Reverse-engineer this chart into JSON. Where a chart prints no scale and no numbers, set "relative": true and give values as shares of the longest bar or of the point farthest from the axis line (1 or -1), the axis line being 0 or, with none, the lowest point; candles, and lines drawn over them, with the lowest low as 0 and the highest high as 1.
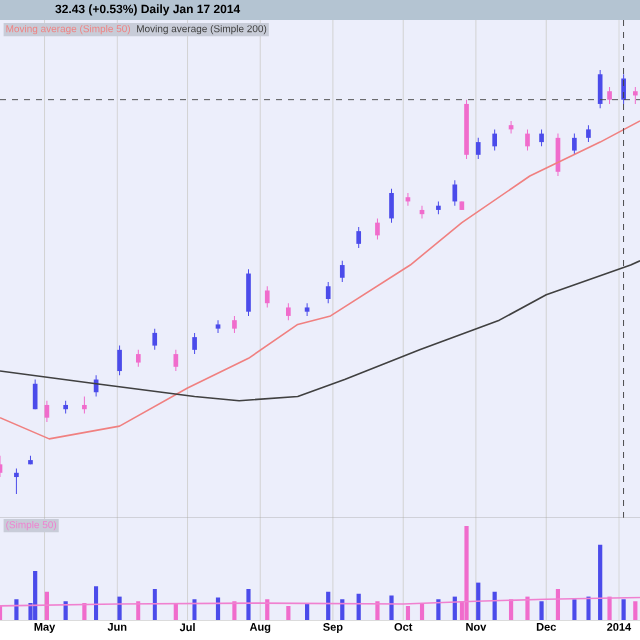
{
  "chart_data": [
    {
      "type": "candlestick",
      "relative": true,
      "title": "32.43 (+0.53%)   Daily   Jan 17 2014",
      "x": [
        "2013-04-12",
        "2013-04-19",
        "2013-04-25",
        "2013-04-27",
        "2013-05-02",
        "2013-05-10",
        "2013-05-18",
        "2013-05-23",
        "2013-06-02",
        "2013-06-10",
        "2013-06-17",
        "2013-06-26",
        "2013-07-04",
        "2013-07-14",
        "2013-07-21",
        "2013-07-27",
        "2013-08-04",
        "2013-08-13",
        "2013-08-21",
        "2013-08-30",
        "2013-09-05",
        "2013-09-12",
        "2013-09-20",
        "2013-09-26",
        "2013-10-03",
        "2013-10-09",
        "2013-10-16",
        "2013-10-23",
        "2013-10-26",
        "2013-10-28",
        "2013-11-02",
        "2013-11-09",
        "2013-11-16",
        "2013-11-23",
        "2013-11-29",
        "2013-12-06",
        "2013-12-13",
        "2013-12-19",
        "2013-12-24",
        "2013-12-28",
        "2014-01-03",
        "2014-01-08"
      ],
      "ohlc": [
        [
          0.07,
          0.09,
          0.04,
          0.05
        ],
        [
          0.04,
          0.06,
          0,
          0.05
        ],
        [
          0.07,
          0.09,
          0.07,
          0.08
        ],
        [
          0.2,
          0.27,
          0.2,
          0.26
        ],
        [
          0.21,
          0.22,
          0.17,
          0.18
        ],
        [
          0.2,
          0.22,
          0.19,
          0.21
        ],
        [
          0.21,
          0.23,
          0.19,
          0.2
        ],
        [
          0.24,
          0.28,
          0.23,
          0.27
        ],
        [
          0.29,
          0.35,
          0.28,
          0.34
        ],
        [
          0.33,
          0.34,
          0.3,
          0.31
        ],
        [
          0.35,
          0.39,
          0.34,
          0.38
        ],
        [
          0.33,
          0.34,
          0.29,
          0.3
        ],
        [
          0.34,
          0.38,
          0.33,
          0.37
        ],
        [
          0.39,
          0.41,
          0.38,
          0.4
        ],
        [
          0.41,
          0.42,
          0.38,
          0.39
        ],
        [
          0.43,
          0.53,
          0.42,
          0.52
        ],
        [
          0.48,
          0.49,
          0.44,
          0.45
        ],
        [
          0.44,
          0.45,
          0.41,
          0.42
        ],
        [
          0.43,
          0.45,
          0.42,
          0.44
        ],
        [
          0.46,
          0.5,
          0.45,
          0.49
        ],
        [
          0.51,
          0.55,
          0.5,
          0.54
        ],
        [
          0.59,
          0.63,
          0.58,
          0.62
        ],
        [
          0.64,
          0.65,
          0.6,
          0.61
        ],
        [
          0.65,
          0.72,
          0.64,
          0.71
        ],
        [
          0.7,
          0.71,
          0.68,
          0.69
        ],
        [
          0.67,
          0.68,
          0.65,
          0.66
        ],
        [
          0.67,
          0.69,
          0.66,
          0.68
        ],
        [
          0.69,
          0.74,
          0.68,
          0.73
        ],
        [
          0.69,
          0.69,
          0.67,
          0.67
        ],
        [
          0.92,
          0.93,
          0.79,
          0.8
        ],
        [
          0.8,
          0.84,
          0.79,
          0.83
        ],
        [
          0.82,
          0.86,
          0.81,
          0.85
        ],
        [
          0.87,
          0.88,
          0.85,
          0.86
        ],
        [
          0.85,
          0.86,
          0.81,
          0.82
        ],
        [
          0.83,
          0.86,
          0.82,
          0.85
        ],
        [
          0.84,
          0.85,
          0.75,
          0.76
        ],
        [
          0.81,
          0.85,
          0.8,
          0.84
        ],
        [
          0.84,
          0.87,
          0.83,
          0.86
        ],
        [
          0.92,
          1.0,
          0.91,
          0.99
        ],
        [
          0.95,
          0.96,
          0.92,
          0.93
        ],
        [
          0.93,
          0.99,
          0.92,
          0.98
        ],
        [
          0.95,
          0.96,
          0.92,
          0.94
        ]
      ],
      "colors": [
        "#f06ccc",
        "#4b4bea",
        "#4b4bea",
        "#4b4bea",
        "#f06ccc",
        "#4b4bea",
        "#f06ccc",
        "#4b4bea",
        "#4b4bea",
        "#f06ccc",
        "#4b4bea",
        "#f06ccc",
        "#4b4bea",
        "#4b4bea",
        "#f06ccc",
        "#4b4bea",
        "#f06ccc",
        "#f06ccc",
        "#4b4bea",
        "#4b4bea",
        "#4b4bea",
        "#4b4bea",
        "#f06ccc",
        "#4b4bea",
        "#f06ccc",
        "#f06ccc",
        "#4b4bea",
        "#4b4bea",
        "#f06ccc",
        "#f06ccc",
        "#4b4bea",
        "#4b4bea",
        "#f06ccc",
        "#f06ccc",
        "#4b4bea",
        "#f06ccc",
        "#4b4bea",
        "#4b4bea",
        "#4b4bea",
        "#f06ccc",
        "#4b4bea",
        "#f06ccc"
      ],
      "series": [
        {
          "type": "line",
          "name": "Moving average (Simple 50)",
          "color": "#f08080",
          "x": [
            "2013-04-12",
            "2013-05-03",
            "2013-06-02",
            "2013-07-01",
            "2013-07-27",
            "2013-08-17",
            "2013-08-31",
            "2013-10-04",
            "2013-10-26",
            "2013-11-24",
            "2013-12-24",
            "2014-01-10"
          ],
          "values": [
            0.18,
            0.13,
            0.16,
            0.25,
            0.32,
            0.4,
            0.42,
            0.54,
            0.64,
            0.75,
            0.83,
            0.88
          ]
        },
        {
          "type": "line",
          "name": "Moving average (Simple 200)",
          "color": "#404040",
          "x": [
            "2013-04-12",
            "2013-05-23",
            "2013-07-04",
            "2013-07-23",
            "2013-08-17",
            "2013-09-06",
            "2013-10-08",
            "2013-11-11",
            "2013-12-01",
            "2014-01-06",
            "2014-01-10"
          ],
          "values": [
            0.29,
            0.26,
            0.23,
            0.22,
            0.23,
            0.27,
            0.34,
            0.41,
            0.47,
            0.54,
            0.55
          ]
        }
      ],
      "ref_lines": [
        {
          "axis": "y",
          "value": 0.93,
          "line_style": "dashed"
        },
        {
          "axis": "x",
          "value": "2014-01-03",
          "line_style": "dashed"
        }
      ],
      "xlim": [
        "2013-04-12",
        "2014-01-10"
      ],
      "xticks": [
        {
          "value": "2013-05-01",
          "label": null
        },
        {
          "value": "2013-06-01",
          "label": null
        },
        {
          "value": "2013-07-01",
          "label": null
        },
        {
          "value": "2013-08-01",
          "label": null
        },
        {
          "value": "2013-09-01",
          "label": null
        },
        {
          "value": "2013-10-01",
          "label": null
        },
        {
          "value": "2013-11-01",
          "label": null
        },
        {
          "value": "2013-12-01",
          "label": null
        },
        {
          "value": "2014-01-01",
          "label": null
        }
      ],
      "tick_labels": false,
      "grid": "x",
      "legend": "top left"
    },
    {
      "type": "bar",
      "relative": true,
      "x": [
        "2013-04-12",
        "2013-04-19",
        "2013-04-25",
        "2013-04-27",
        "2013-05-02",
        "2013-05-10",
        "2013-05-18",
        "2013-05-23",
        "2013-06-02",
        "2013-06-10",
        "2013-06-17",
        "2013-06-26",
        "2013-07-04",
        "2013-07-14",
        "2013-07-21",
        "2013-07-27",
        "2013-08-04",
        "2013-08-13",
        "2013-08-21",
        "2013-08-30",
        "2013-09-05",
        "2013-09-12",
        "2013-09-20",
        "2013-09-26",
        "2013-10-03",
        "2013-10-09",
        "2013-10-16",
        "2013-10-23",
        "2013-10-26",
        "2013-10-28",
        "2013-11-02",
        "2013-11-09",
        "2013-11-16",
        "2013-11-23",
        "2013-11-29",
        "2013-12-06",
        "2013-12-13",
        "2013-12-19",
        "2013-12-24",
        "2013-12-28",
        "2014-01-03",
        "2014-01-08"
      ],
      "values": [
        0.15,
        0.22,
        0.18,
        0.52,
        0.3,
        0.2,
        0.18,
        0.36,
        0.25,
        0.2,
        0.33,
        0.18,
        0.22,
        0.24,
        0.2,
        0.33,
        0.22,
        0.15,
        0.18,
        0.3,
        0.22,
        0.28,
        0.2,
        0.26,
        0.15,
        0.18,
        0.22,
        0.25,
        0.2,
        1.0,
        0.4,
        0.3,
        0.22,
        0.25,
        0.2,
        0.33,
        0.22,
        0.25,
        0.8,
        0.25,
        0.22,
        0.2
      ],
      "colors": [
        "#f06ccc",
        "#4b4bea",
        "#4b4bea",
        "#4b4bea",
        "#f06ccc",
        "#4b4bea",
        "#f06ccc",
        "#4b4bea",
        "#4b4bea",
        "#f06ccc",
        "#4b4bea",
        "#f06ccc",
        "#4b4bea",
        "#4b4bea",
        "#f06ccc",
        "#4b4bea",
        "#f06ccc",
        "#f06ccc",
        "#4b4bea",
        "#4b4bea",
        "#4b4bea",
        "#4b4bea",
        "#f06ccc",
        "#4b4bea",
        "#f06ccc",
        "#f06ccc",
        "#4b4bea",
        "#4b4bea",
        "#f06ccc",
        "#f06ccc",
        "#4b4bea",
        "#4b4bea",
        "#f06ccc",
        "#f06ccc",
        "#4b4bea",
        "#f06ccc",
        "#4b4bea",
        "#4b4bea",
        "#4b4bea",
        "#f06ccc",
        "#4b4bea",
        "#f06ccc"
      ],
      "series": [
        {
          "type": "line",
          "name": "(Simple 50)",
          "color": "#f080d0",
          "x": [
            "2013-04-12",
            "2013-06-01",
            "2013-08-01",
            "2013-10-01",
            "2013-11-01",
            "2013-12-01",
            "2014-01-10"
          ],
          "values": [
            0.15,
            0.17,
            0.18,
            0.17,
            0.2,
            0.22,
            0.24
          ]
        }
      ],
      "xlim": [
        "2013-04-12",
        "2014-01-10"
      ],
      "xticks": [
        {
          "value": "2013-05-01",
          "label": "May"
        },
        {
          "value": "2013-06-01",
          "label": "Jun"
        },
        {
          "value": "2013-07-01",
          "label": "Jul"
        },
        {
          "value": "2013-08-01",
          "label": "Aug"
        },
        {
          "value": "2013-09-01",
          "label": "Sep"
        },
        {
          "value": "2013-10-01",
          "label": "Oct"
        },
        {
          "value": "2013-11-01",
          "label": "Nov"
        },
        {
          "value": "2013-12-01",
          "label": "Dec"
        },
        {
          "value": "2014-01-01",
          "label": "2014"
        }
      ],
      "tick_labels": "x",
      "grid": "x",
      "legend": "top left"
    }
  ]
}
